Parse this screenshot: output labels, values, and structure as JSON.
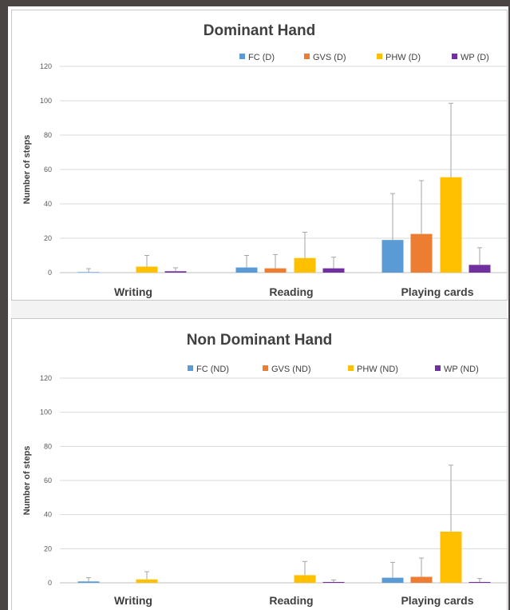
{
  "chart_data": [
    {
      "type": "bar",
      "title": "Dominant Hand",
      "xlabel": "",
      "ylabel": "Number of steps",
      "ylim": [
        0,
        120
      ],
      "yticks": [
        0,
        20,
        40,
        60,
        80,
        100,
        120
      ],
      "categories": [
        "Writing",
        "Reading",
        "Playing cards"
      ],
      "legend": "top-right",
      "grid": true,
      "series": [
        {
          "name": "FC (D)",
          "color": "#5b9bd5",
          "values": [
            0.3,
            3,
            19
          ],
          "error": [
            2,
            7,
            27
          ]
        },
        {
          "name": "GVS (D)",
          "color": "#ed7d31",
          "values": [
            0,
            2.5,
            22.5
          ],
          "error": [
            0,
            8,
            31
          ]
        },
        {
          "name": "PHW (D)",
          "color": "#ffc000",
          "values": [
            3.5,
            8.5,
            55.5
          ],
          "error": [
            6.5,
            15,
            43
          ]
        },
        {
          "name": "WP (D)",
          "color": "#7030a0",
          "values": [
            0.8,
            2.5,
            4.5
          ],
          "error": [
            2,
            6.5,
            10
          ]
        }
      ]
    },
    {
      "type": "bar",
      "title": "Non Dominant Hand",
      "xlabel": "",
      "ylabel": "Number of steps",
      "ylim": [
        0,
        120
      ],
      "yticks": [
        0,
        20,
        40,
        60,
        80,
        100,
        120
      ],
      "categories": [
        "Writing",
        "Reading",
        "Playing cards"
      ],
      "legend": "top-right",
      "grid": true,
      "series": [
        {
          "name": "FC (ND)",
          "color": "#5b9bd5",
          "values": [
            0.8,
            0,
            3
          ],
          "error": [
            2.2,
            0,
            9
          ]
        },
        {
          "name": "GVS (ND)",
          "color": "#ed7d31",
          "values": [
            0,
            0,
            3.5
          ],
          "error": [
            0,
            0,
            11
          ]
        },
        {
          "name": "PHW (ND)",
          "color": "#ffc000",
          "values": [
            2,
            4.5,
            30
          ],
          "error": [
            4.5,
            8,
            39
          ]
        },
        {
          "name": "WP (ND)",
          "color": "#7030a0",
          "values": [
            0,
            0.5,
            0.5
          ],
          "error": [
            0,
            1.2,
            2
          ]
        }
      ]
    }
  ]
}
